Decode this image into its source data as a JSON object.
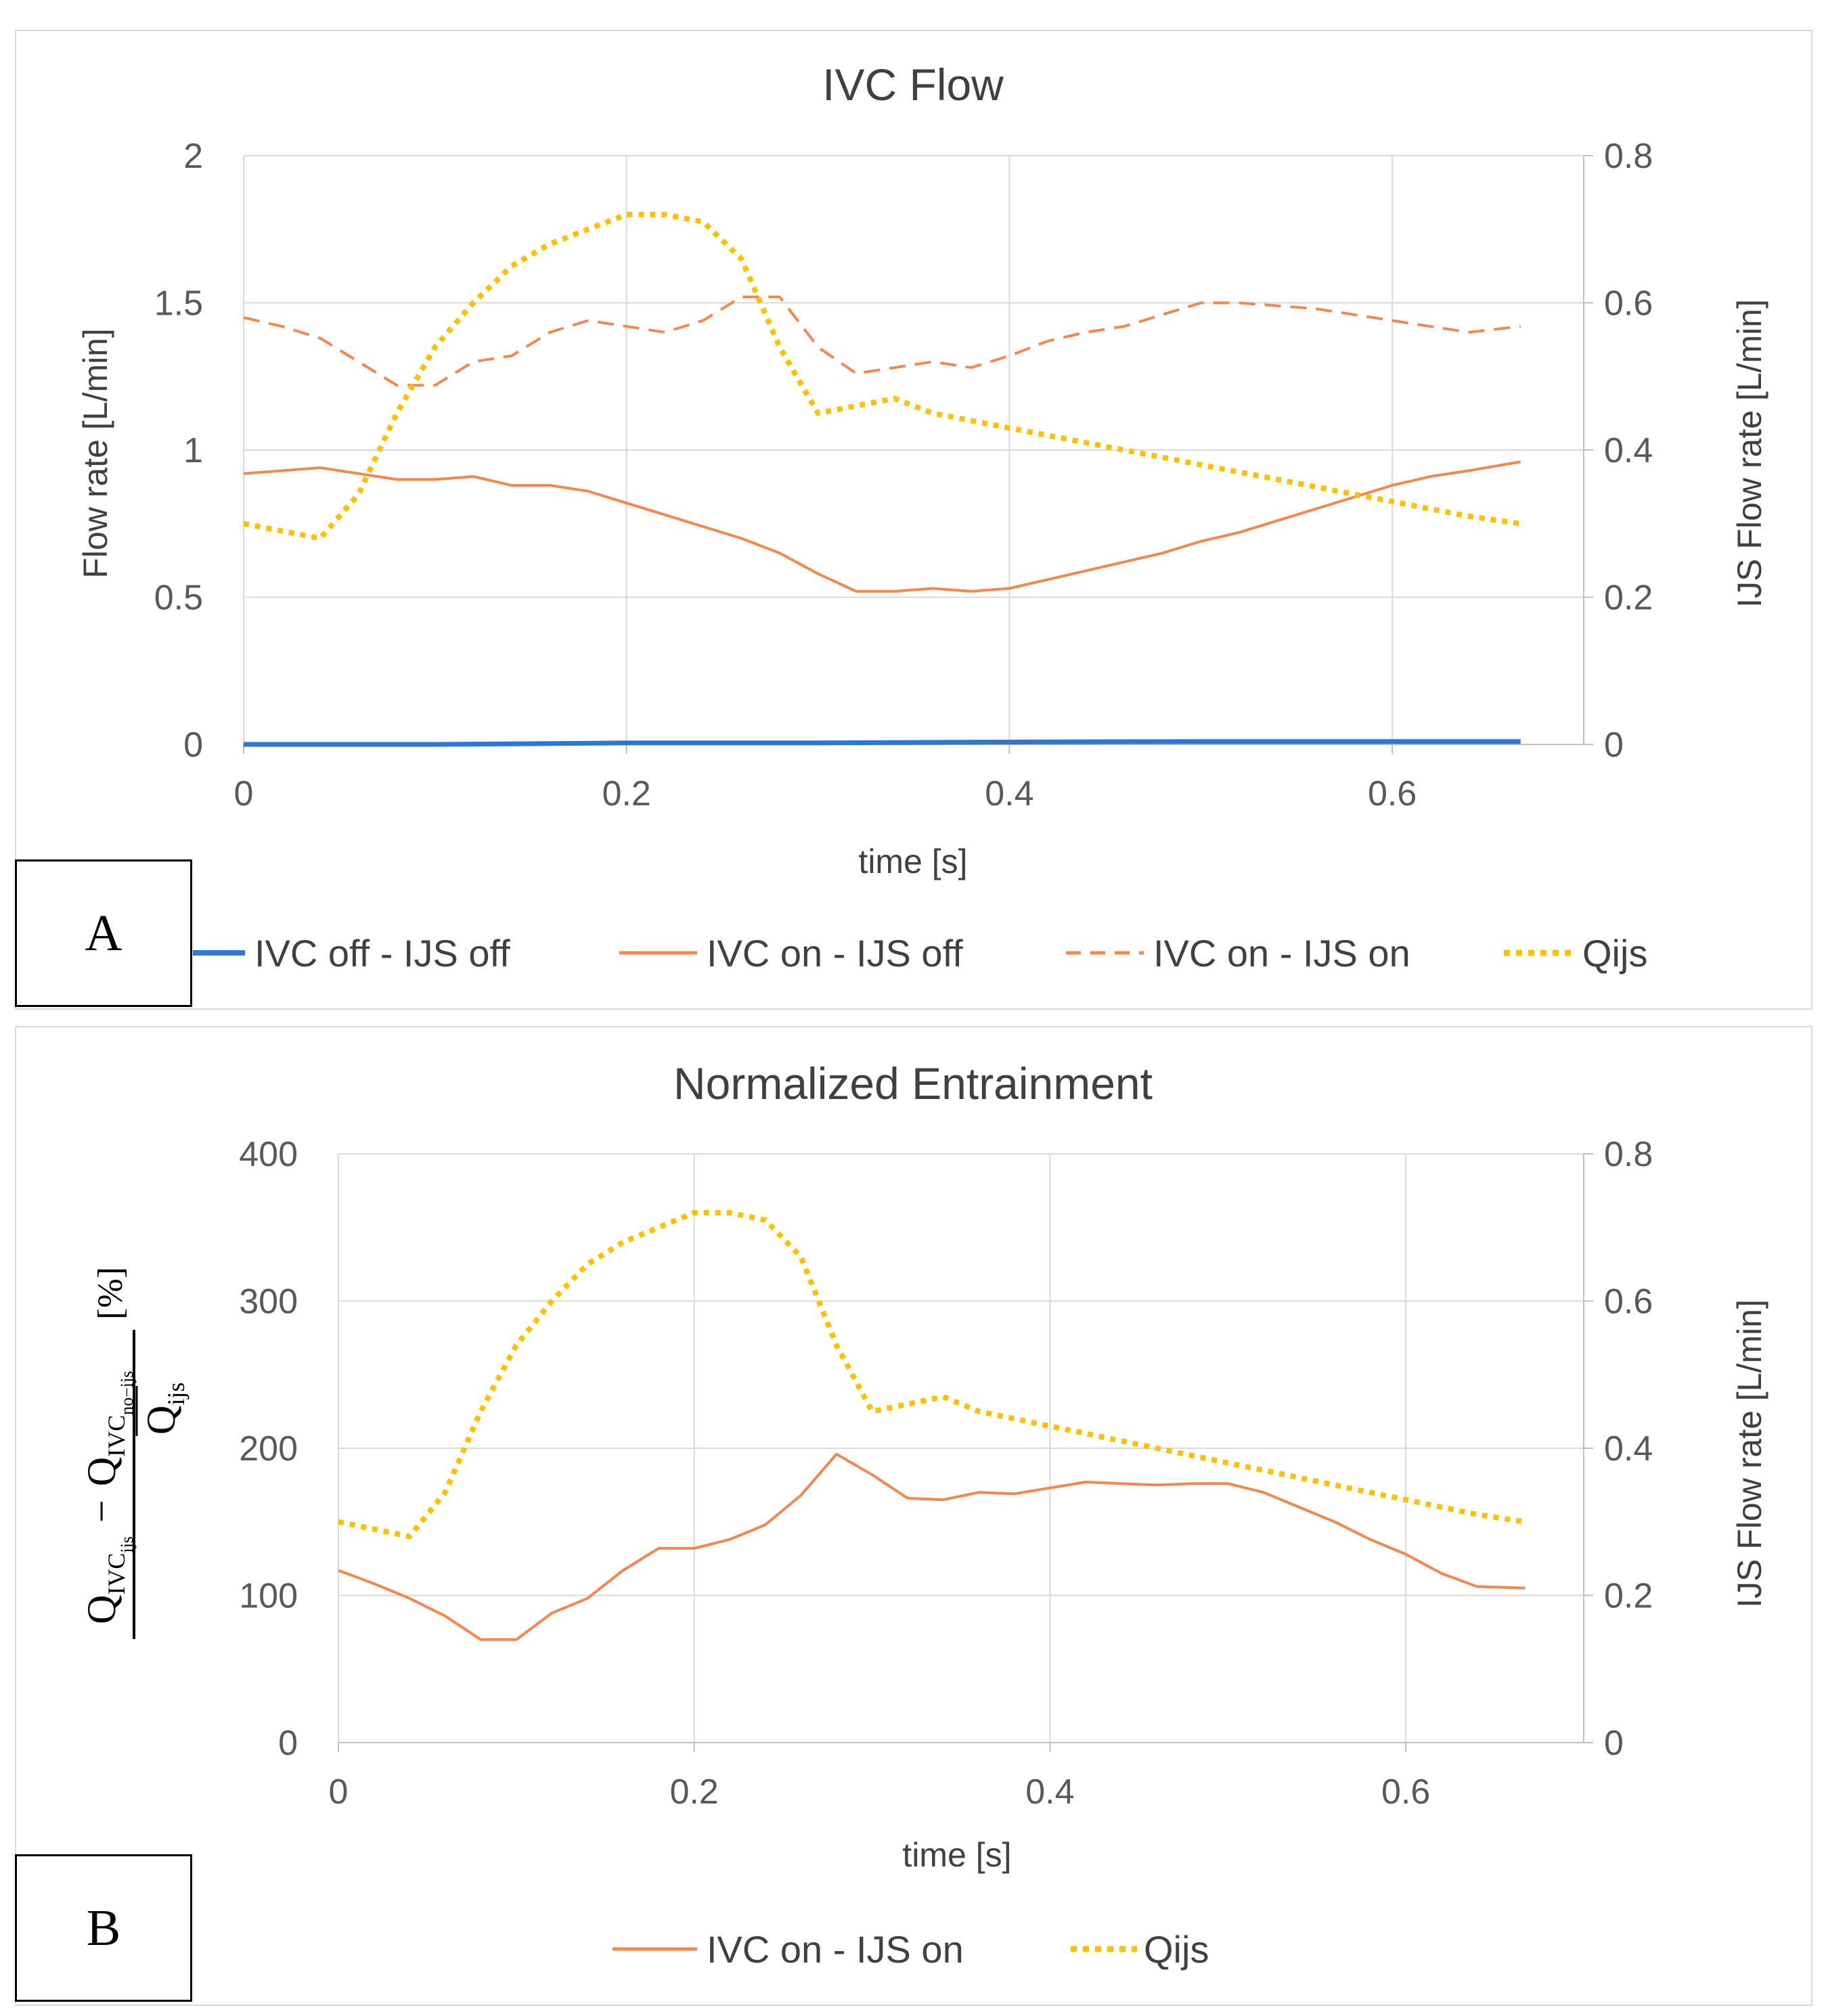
{
  "chart_data": [
    {
      "panel": "A",
      "type": "line",
      "title": "IVC  Flow",
      "xlabel": "time [s]",
      "ylabel": "Flow rate [L/min]",
      "y2label": "IJS Flow rate [L/min]",
      "xlim": [
        0,
        0.7
      ],
      "ylim": [
        0,
        2
      ],
      "y2lim": [
        0,
        0.8
      ],
      "xticks": [
        "0",
        "0.2",
        "0.4",
        "0.6"
      ],
      "yticks": [
        "0",
        "0.5",
        "1",
        "1.5",
        "2"
      ],
      "y2ticks": [
        "0",
        "0.2",
        "0.4",
        "0.6",
        "0.8"
      ],
      "grid": "vertical and horizontal",
      "legend_position": "bottom",
      "series": [
        {
          "name": "IVC off - IJS off",
          "axis": "left",
          "style": "solid",
          "color": "#2E75D6",
          "x": [
            0,
            0.1,
            0.2,
            0.3,
            0.4,
            0.5,
            0.6,
            0.667
          ],
          "y": [
            0,
            0,
            0.005,
            0.005,
            0.008,
            0.01,
            0.01,
            0.01
          ]
        },
        {
          "name": "IVC on - IJS off",
          "axis": "left",
          "style": "solid",
          "color": "#F4874B",
          "x": [
            0,
            0.02,
            0.04,
            0.06,
            0.08,
            0.1,
            0.12,
            0.14,
            0.16,
            0.18,
            0.2,
            0.22,
            0.24,
            0.26,
            0.28,
            0.3,
            0.32,
            0.34,
            0.36,
            0.38,
            0.4,
            0.42,
            0.44,
            0.46,
            0.48,
            0.5,
            0.52,
            0.54,
            0.56,
            0.58,
            0.6,
            0.62,
            0.64,
            0.667
          ],
          "y": [
            0.92,
            0.93,
            0.94,
            0.92,
            0.9,
            0.9,
            0.91,
            0.88,
            0.88,
            0.86,
            0.82,
            0.78,
            0.74,
            0.7,
            0.65,
            0.58,
            0.52,
            0.52,
            0.53,
            0.52,
            0.53,
            0.56,
            0.59,
            0.62,
            0.65,
            0.69,
            0.72,
            0.76,
            0.8,
            0.84,
            0.88,
            0.91,
            0.93,
            0.96
          ]
        },
        {
          "name": "IVC on - IJS on",
          "axis": "left",
          "style": "dashed",
          "color": "#F4874B",
          "x": [
            0,
            0.02,
            0.04,
            0.06,
            0.08,
            0.1,
            0.12,
            0.14,
            0.16,
            0.18,
            0.2,
            0.22,
            0.24,
            0.26,
            0.28,
            0.3,
            0.32,
            0.34,
            0.36,
            0.38,
            0.4,
            0.42,
            0.44,
            0.46,
            0.48,
            0.5,
            0.52,
            0.54,
            0.56,
            0.58,
            0.6,
            0.62,
            0.64,
            0.667
          ],
          "y": [
            1.45,
            1.42,
            1.38,
            1.3,
            1.22,
            1.22,
            1.3,
            1.32,
            1.4,
            1.44,
            1.42,
            1.4,
            1.44,
            1.52,
            1.52,
            1.35,
            1.26,
            1.28,
            1.3,
            1.28,
            1.32,
            1.37,
            1.4,
            1.42,
            1.46,
            1.5,
            1.5,
            1.49,
            1.48,
            1.46,
            1.44,
            1.42,
            1.4,
            1.42
          ]
        },
        {
          "name": "Qijs",
          "axis": "right",
          "style": "dotted",
          "color": "#FFC000",
          "x": [
            0,
            0.02,
            0.04,
            0.06,
            0.08,
            0.1,
            0.12,
            0.14,
            0.16,
            0.18,
            0.2,
            0.22,
            0.24,
            0.26,
            0.28,
            0.3,
            0.32,
            0.34,
            0.36,
            0.38,
            0.4,
            0.42,
            0.44,
            0.46,
            0.48,
            0.5,
            0.52,
            0.54,
            0.56,
            0.58,
            0.6,
            0.62,
            0.64,
            0.667
          ],
          "y": [
            0.3,
            0.29,
            0.28,
            0.34,
            0.45,
            0.54,
            0.6,
            0.65,
            0.68,
            0.7,
            0.72,
            0.72,
            0.71,
            0.66,
            0.54,
            0.45,
            0.46,
            0.47,
            0.45,
            0.44,
            0.43,
            0.42,
            0.41,
            0.4,
            0.39,
            0.38,
            0.37,
            0.36,
            0.35,
            0.34,
            0.33,
            0.32,
            0.31,
            0.3
          ]
        }
      ]
    },
    {
      "panel": "B",
      "type": "line",
      "title": "Normalized Entrainment",
      "xlabel": "time [s]",
      "ylabel": {
        "q": "Q",
        "ivc": "IVC",
        "ijs": "ijs",
        "minus": "−",
        "noijs": "no−ijs",
        "qijs": "Q",
        "qijs_sub": "ijs",
        "unit": "[%]"
      },
      "y2label": "IJS Flow rate [L/min]",
      "xlim": [
        0,
        0.7
      ],
      "ylim": [
        0,
        400
      ],
      "y2lim": [
        0,
        0.8
      ],
      "xticks": [
        "0",
        "0.2",
        "0.4",
        "0.6"
      ],
      "yticks": [
        "0",
        "100",
        "200",
        "300",
        "400"
      ],
      "y2ticks": [
        "0",
        "0.2",
        "0.4",
        "0.6",
        "0.8"
      ],
      "grid": "vertical and horizontal",
      "legend_position": "bottom",
      "series": [
        {
          "name": "IVC on - IJS on",
          "axis": "left",
          "style": "solid",
          "color": "#F4874B",
          "x": [
            0,
            0.02,
            0.04,
            0.06,
            0.08,
            0.1,
            0.12,
            0.14,
            0.16,
            0.18,
            0.2,
            0.22,
            0.24,
            0.26,
            0.28,
            0.3,
            0.32,
            0.34,
            0.36,
            0.38,
            0.4,
            0.42,
            0.44,
            0.46,
            0.48,
            0.5,
            0.52,
            0.54,
            0.56,
            0.58,
            0.6,
            0.62,
            0.64,
            0.667
          ],
          "y": [
            117,
            108,
            98,
            86,
            70,
            70,
            88,
            98,
            117,
            132,
            132,
            138,
            148,
            168,
            196,
            182,
            166,
            165,
            170,
            169,
            173,
            177,
            176,
            175,
            176,
            176,
            170,
            160,
            150,
            138,
            128,
            115,
            106,
            105
          ]
        },
        {
          "name": "Qijs",
          "axis": "right",
          "style": "dotted",
          "color": "#FFC000",
          "x": [
            0,
            0.02,
            0.04,
            0.06,
            0.08,
            0.1,
            0.12,
            0.14,
            0.16,
            0.18,
            0.2,
            0.22,
            0.24,
            0.26,
            0.28,
            0.3,
            0.32,
            0.34,
            0.36,
            0.38,
            0.4,
            0.42,
            0.44,
            0.46,
            0.48,
            0.5,
            0.52,
            0.54,
            0.56,
            0.58,
            0.6,
            0.62,
            0.64,
            0.667
          ],
          "y": [
            0.3,
            0.29,
            0.28,
            0.34,
            0.45,
            0.54,
            0.6,
            0.65,
            0.68,
            0.7,
            0.72,
            0.72,
            0.71,
            0.66,
            0.54,
            0.45,
            0.46,
            0.47,
            0.45,
            0.44,
            0.43,
            0.42,
            0.41,
            0.4,
            0.39,
            0.38,
            0.37,
            0.36,
            0.35,
            0.34,
            0.33,
            0.32,
            0.31,
            0.3
          ]
        }
      ]
    }
  ],
  "panel_labels": {
    "a": "A",
    "b": "B"
  }
}
